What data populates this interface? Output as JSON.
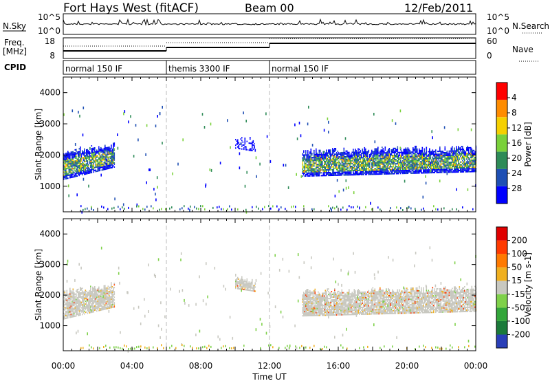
{
  "header": {
    "title": "Fort Hays West (fitACF)",
    "beam": "Beam 00",
    "date": "12/Feb/2011"
  },
  "panels": {
    "nsky": {
      "label": "N.Sky",
      "ticks": [
        "10^5",
        "10^0"
      ]
    },
    "nsearch": {
      "label": "N.Search",
      "ticks": [
        "10^5",
        "10^0"
      ]
    },
    "freq": {
      "label_line1": "Freq.",
      "label_line2": "[MHz]",
      "ticks": [
        "18",
        "8"
      ]
    },
    "nave": {
      "label": "Nave",
      "ticks": [
        "60",
        "0"
      ]
    },
    "cpid": {
      "label": "CPID",
      "segments": [
        {
          "label": "normal 150 IF",
          "start": 0
        },
        {
          "label": "themis 3300 IF",
          "start": 6
        },
        {
          "label": "normal 150 IF",
          "start": 12
        }
      ]
    }
  },
  "chart_data": [
    {
      "type": "heatmap",
      "title": "",
      "xlabel": "Time UT",
      "ylabel": "Slant Range [km]",
      "xlim": [
        0,
        24
      ],
      "ylim": [
        180,
        4500
      ],
      "x_ticks": [
        "00:00",
        "04:00",
        "08:00",
        "12:00",
        "16:00",
        "20:00",
        "00:00"
      ],
      "y_ticks": [
        "1000",
        "2000",
        "3000",
        "4000"
      ],
      "colorbar": {
        "label": "Power [dB]",
        "ticks": [
          "4",
          "8",
          "12",
          "16",
          "20",
          "24",
          "28"
        ],
        "range": [
          0,
          30
        ],
        "colors": [
          "#0000ff",
          "#1e4fb4",
          "#2e8b57",
          "#7ad13a",
          "#f5d000",
          "#ff8c00",
          "#ff0000"
        ]
      },
      "bands": [
        {
          "t": [
            0.0,
            3.0
          ],
          "lower_km": [
            1200,
            1600
          ],
          "upper_km": [
            2100,
            2300
          ],
          "level": "mixed"
        },
        {
          "t": [
            13.9,
            24.0
          ],
          "lower_km": [
            1300,
            1450
          ],
          "upper_km": [
            2100,
            2200
          ],
          "level": "mixed"
        },
        {
          "t": [
            10.0,
            11.2
          ],
          "lower_km": [
            2200,
            2100
          ],
          "upper_km": [
            2600,
            2400
          ],
          "level": "weak"
        }
      ]
    },
    {
      "type": "heatmap",
      "title": "",
      "xlabel": "Time UT",
      "ylabel": "Slant Range [km]",
      "xlim": [
        0,
        24
      ],
      "ylim": [
        180,
        4500
      ],
      "x_ticks": [
        "00:00",
        "04:00",
        "08:00",
        "12:00",
        "16:00",
        "20:00",
        "00:00"
      ],
      "y_ticks": [
        "1000",
        "2000",
        "3000",
        "4000"
      ],
      "colorbar": {
        "label": "Velocity [m s-1]",
        "ticks": [
          "200",
          "100",
          "50",
          "15",
          "-15",
          "-50",
          "-100",
          "-200"
        ],
        "range": [
          -250,
          250
        ],
        "colors": [
          "#2a3fb8",
          "#1b7a3a",
          "#33a63a",
          "#7fd14a",
          "#c8c8c0",
          "#f0b020",
          "#ff7a00",
          "#ff3a00",
          "#e00000"
        ]
      },
      "bands": [
        {
          "t": [
            0.0,
            3.0
          ],
          "lower_km": [
            1200,
            1600
          ],
          "upper_km": [
            2100,
            2300
          ],
          "level": "ground"
        },
        {
          "t": [
            13.9,
            24.0
          ],
          "lower_km": [
            1300,
            1450
          ],
          "upper_km": [
            2100,
            2200
          ],
          "level": "ground"
        },
        {
          "t": [
            10.0,
            11.2
          ],
          "lower_km": [
            2200,
            2100
          ],
          "upper_km": [
            2600,
            2400
          ],
          "level": "ground"
        }
      ]
    }
  ]
}
